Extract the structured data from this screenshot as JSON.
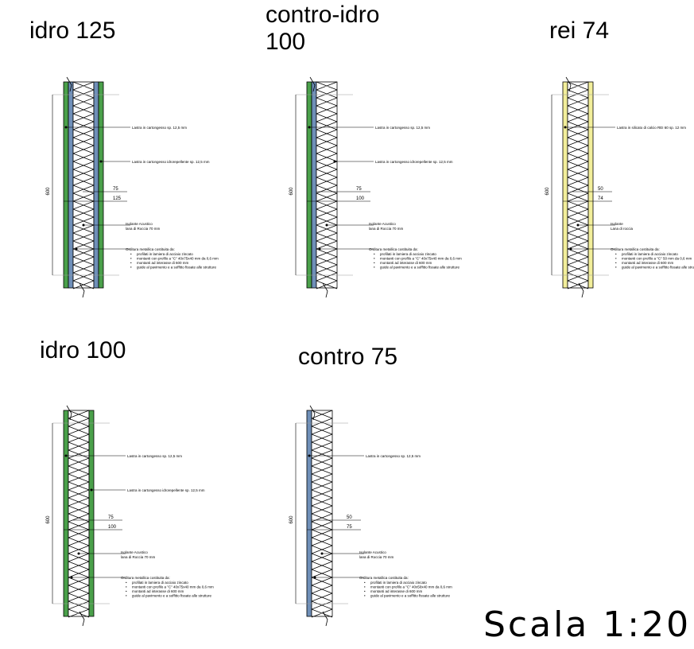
{
  "titles": {
    "idro125": "idro 125",
    "controIdro100": "contro-idro\n100",
    "rei74": "rei 74",
    "idro100": "idro 100",
    "contro75": "contro 75"
  },
  "scale_label": "Scala 1:20",
  "colors": {
    "green_board": "#4aa04a",
    "blue_board": "#6f8fb8",
    "yellow_board": "#f2ee9a",
    "line": "#000000",
    "grid": "#999999"
  },
  "details": [
    {
      "id": "idro125",
      "layers": [
        "green",
        "blue",
        "insulation",
        "blue",
        "green"
      ],
      "height_label": "600",
      "dim1": "75",
      "dim2": "125",
      "note_board": "Lastra in cartongesso  sp. 12,5 mm",
      "note_board2": "Lastra in cartongesso  idrorepellente sp. 12,5 mm",
      "note_insul_1": "Isolante Acustico",
      "note_insul_2": "lana di Roccia 70 mm",
      "note_frame_title": "Orditura metallica costituita da:",
      "note_frame_items": [
        "profilati in lamiera di acciaio zincato",
        "montanti con profilo  a \"C\" 40x75x40 mm da 0,6 mm",
        "montanti ad interasse di 600 mm",
        "guide al pavimento e a soffitto fissate alle strutture"
      ]
    },
    {
      "id": "controIdro100",
      "layers": [
        "green",
        "blue",
        "insulation"
      ],
      "height_label": "600",
      "dim1": "75",
      "dim2": "100",
      "note_board": "Lastra in cartongesso  sp. 12,5 mm",
      "note_board2": "Lastra in cartongesso  idrorepellente sp. 12,5 mm",
      "note_insul_1": "Isolante Acustico",
      "note_insul_2": "lana di Roccia 70 mm",
      "note_frame_title": "Orditura metallica costituita da:",
      "note_frame_items": [
        "profilati in lamiera di acciaio zincato",
        "montanti con profilo  a \"C\" 40x75x40 mm da 0,6 mm",
        "montanti ad interasse di 600 mm",
        "guide al pavimento e a soffitto fissate alle strutture"
      ]
    },
    {
      "id": "rei74",
      "layers": [
        "yellow",
        "insulation",
        "yellow"
      ],
      "height_label": "600",
      "dim1": "50",
      "dim2": "74",
      "note_board": "Lastra in silicato di calcio REI 60  sp. 12 mm",
      "note_insul_1": "Isolante",
      "note_insul_2": "Lana di roccia",
      "note_frame_title": "Orditura metallica costituita da:",
      "note_frame_items": [
        "profilati in lamiera di acciaio zincato",
        "montanti con profilo  a \"C\" 50 mm da 0,6 mm",
        "montanti ad interasse di 600 mm",
        "guide al pavimento e a soffitto fissate alle strut"
      ]
    },
    {
      "id": "idro100",
      "layers": [
        "green",
        "insulation",
        "green"
      ],
      "height_label": "600",
      "dim1": "75",
      "dim2": "100",
      "note_board": "Lastra in cartongesso  sp. 12,5 mm",
      "note_board2": "Lastra in cartongesso  idrorepellente sp. 12,5 mm",
      "note_insul_1": "Isolante Acustico",
      "note_insul_2": "lana di Roccia 70 mm",
      "note_frame_title": "Orditura metallica costituita da:",
      "note_frame_items": [
        "profilati in lamiera di acciaio zincato",
        "montanti con profilo  a \"C\" 40x75x40 mm da 0,6 mm",
        "montanti ad interasse di 600 mm",
        "guide al pavimento e a soffitto fissate alle strutture"
      ]
    },
    {
      "id": "contro75",
      "layers": [
        "blue",
        "insulation"
      ],
      "height_label": "600",
      "dim1": "50",
      "dim2": "75",
      "note_board": "Lastra in cartongesso  sp. 12,5 mm",
      "note_insul_1": "Isolante Acustico",
      "note_insul_2": "lana di Roccia 70 mm",
      "note_frame_title": "Orditura metallica costituita da:",
      "note_frame_items": [
        "profilati in lamiera di acciaio zincato",
        "montanti con profilo  a \"C\" 40x50x40 mm da 0,6 mm",
        "montanti ad interasse di 600 mm",
        "guide al pavimento e a soffitto fissate alle strutture"
      ]
    }
  ]
}
